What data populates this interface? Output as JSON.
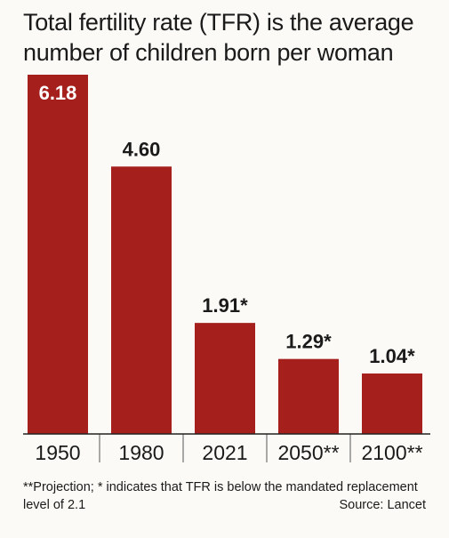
{
  "title": "Total fertility rate (TFR) is the average number of children born per woman",
  "footnote": "**Projection; * indicates that TFR is below the mandated replacement level of 2.1",
  "source": "Source: Lancet",
  "colors": {
    "bar": "#a51f1c",
    "background": "#fbfaf6"
  },
  "chart_data": {
    "type": "bar",
    "categories": [
      "1950",
      "1980",
      "2021",
      "2050**",
      "2100**"
    ],
    "values": [
      6.18,
      4.6,
      1.91,
      1.29,
      1.04
    ],
    "labels": [
      "6.18",
      "4.60",
      "1.91*",
      "1.29*",
      "1.04*"
    ],
    "ylim": [
      0,
      6.18
    ],
    "grid": false,
    "legend": "none"
  }
}
